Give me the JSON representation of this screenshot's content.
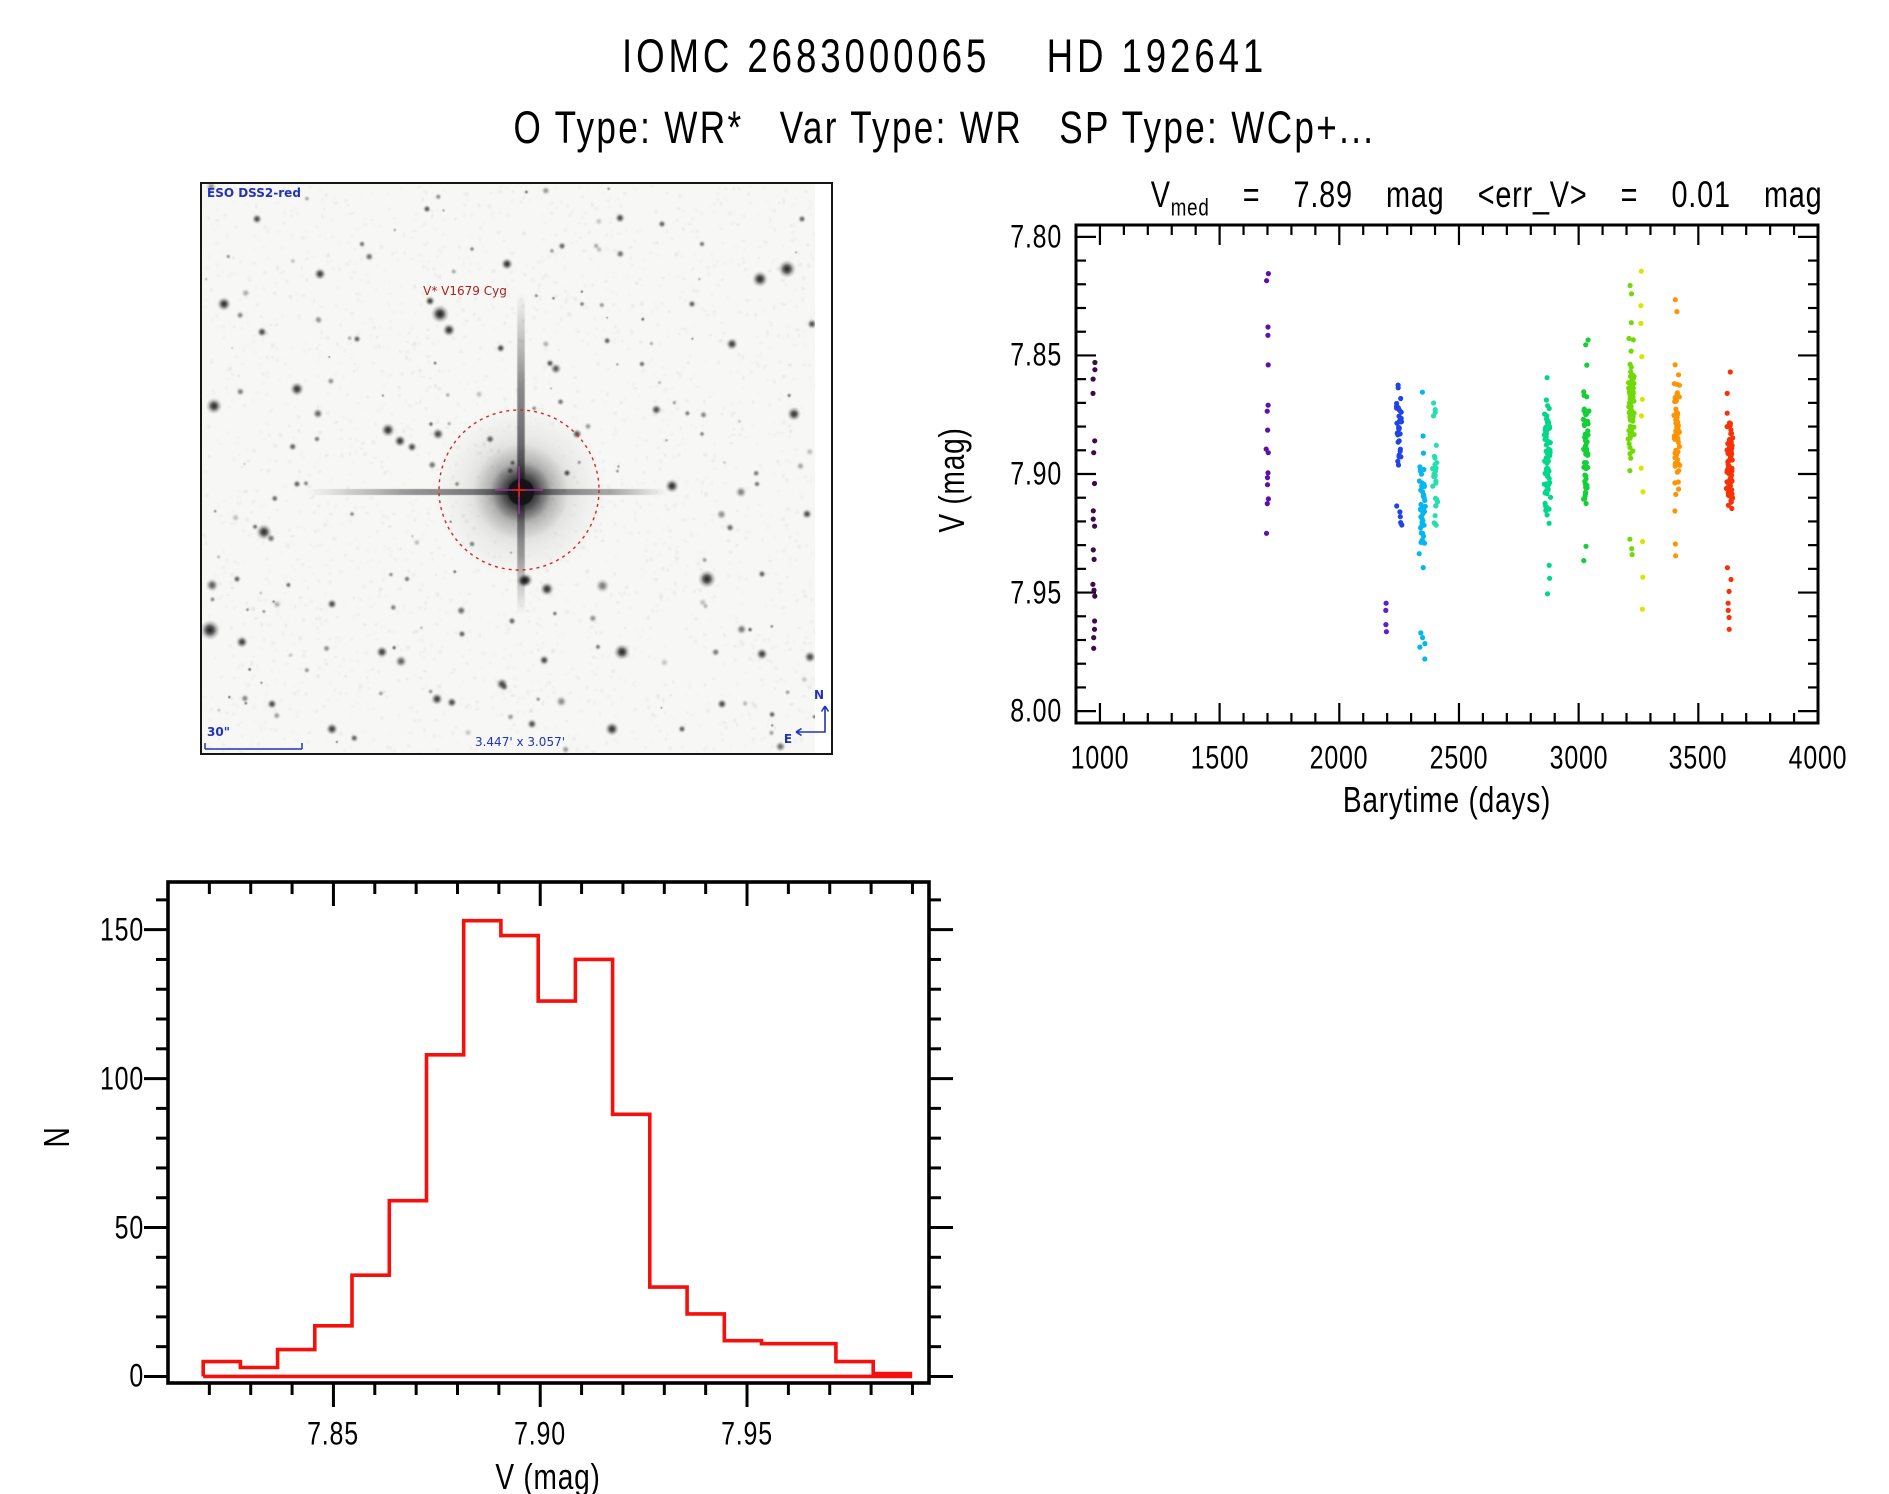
{
  "page": {
    "title": "IOMC 2683000065    HD 192641",
    "subtitle": "O Type: WR*   Var Type: WR   SP Type: WCp+...",
    "background": "#ffffff"
  },
  "finder": {
    "survey_label": "ESO DSS2-red",
    "target_label": "V* V1679 Cyg",
    "scale_label": "30\"",
    "fov_label": "3.447' x 3.057'",
    "compass_north": "N",
    "compass_east": "E",
    "annotation_color": "#2233bb",
    "target_color": "#aa2222",
    "circle_color": "#dd2222",
    "crosshair_color": "#bb33bb",
    "center_mark_color": "#dd2222"
  },
  "chart_data": [
    {
      "type": "scatter",
      "name": "light curve",
      "title": {
        "prefix": "V",
        "subscript": "med",
        "suffix": "  =  7.89  mag  <err_V>  =  0.01  mag"
      },
      "xlabel": "Barytime (days)",
      "ylabel": "V (mag)",
      "xlim": [
        900,
        4000
      ],
      "ylim": [
        7.795,
        8.005
      ],
      "y_inverted": true,
      "grid": false,
      "x_major_ticks": [
        1000,
        1500,
        2000,
        2500,
        3000,
        3500,
        4000
      ],
      "x_major_labels": [
        "1000",
        "1500",
        "2000",
        "2500",
        "3000",
        "3500",
        "4000"
      ],
      "x_minor_step": 100,
      "y_major_ticks": [
        7.8,
        7.85,
        7.9,
        7.95,
        8.0
      ],
      "y_major_labels": [
        "7.80",
        "7.85",
        "7.90",
        "7.95",
        "8.00"
      ],
      "y_minor_step": 0.01,
      "point_radius_px": 2.6,
      "clusters": [
        {
          "day": 975,
          "color": "#400a4a",
          "v": [
            7.853,
            7.856,
            7.86,
            7.866,
            7.886,
            7.891,
            7.904,
            7.9155,
            7.919,
            7.922,
            7.932,
            7.936,
            7.9465,
            7.949,
            7.9515,
            7.962,
            7.9655,
            7.969,
            7.9735
          ]
        },
        {
          "day": 1700,
          "color": "#5f10a8",
          "v": [
            7.8155,
            7.8185,
            7.838,
            7.8415,
            7.854,
            7.871,
            7.8735,
            7.8815,
            7.8895,
            7.891,
            7.8995,
            7.9015,
            7.9045,
            7.9105,
            7.9125,
            7.925
          ]
        },
        {
          "day": 2195,
          "color": "#5a21cc",
          "v": [
            7.9545,
            7.9575,
            7.9635,
            7.9665
          ]
        },
        {
          "day": 2250,
          "color": "#2145e4",
          "gen": {
            "n": 32,
            "mean": 7.884,
            "sigma": 0.01,
            "min": 7.861,
            "max": 7.908
          },
          "v": [
            7.8625,
            7.9135,
            7.916,
            7.918,
            7.9205,
            7.9215
          ]
        },
        {
          "day": 2346,
          "color": "#08b6ee",
          "gen": {
            "n": 48,
            "mean": 7.9145,
            "sigma": 0.0155,
            "min": 7.879,
            "max": 7.9555
          },
          "v": [
            7.8655,
            7.967,
            7.969,
            7.9715,
            7.973,
            7.978
          ]
        },
        {
          "day": 2400,
          "color": "#26dfae",
          "gen": {
            "n": 28,
            "mean": 7.9,
            "sigma": 0.015,
            "min": 7.868,
            "max": 7.9515
          }
        },
        {
          "day": 2870,
          "color": "#00d788",
          "gen": {
            "n": 82,
            "mean": 7.8925,
            "sigma": 0.0125,
            "min": 7.846,
            "max": 7.9315
          },
          "v": [
            7.9385,
            7.944,
            7.9505
          ]
        },
        {
          "day": 3030,
          "color": "#15cf39",
          "gen": {
            "n": 62,
            "mean": 7.888,
            "sigma": 0.012,
            "min": 7.848,
            "max": 7.9275
          },
          "v": [
            7.8435,
            7.8455,
            7.9305,
            7.9365
          ]
        },
        {
          "day": 3220,
          "color": "#72d908",
          "gen": {
            "n": 88,
            "mean": 7.871,
            "sigma": 0.012,
            "min": 7.8285,
            "max": 7.9185
          },
          "v": [
            7.8205,
            7.824,
            7.9275,
            7.9315,
            7.934
          ]
        },
        {
          "day": 3265,
          "color": "#d9e500",
          "v": [
            7.8145,
            7.829,
            7.8365,
            7.8505,
            7.8685,
            7.8755,
            7.8975,
            7.9075,
            7.9285,
            7.9435,
            7.957
          ]
        },
        {
          "day": 3410,
          "color": "#fe9404",
          "gen": {
            "n": 70,
            "mean": 7.8845,
            "sigma": 0.011,
            "min": 7.8445,
            "max": 7.9255
          },
          "v": [
            7.8265,
            7.8315,
            7.9295,
            7.9345
          ]
        },
        {
          "day": 3630,
          "color": "#f53208",
          "gen": {
            "n": 85,
            "mean": 7.8965,
            "sigma": 0.01,
            "min": 7.874,
            "max": 7.9315
          },
          "v": [
            7.857,
            7.866,
            7.9395,
            7.9445,
            7.9495,
            7.9545,
            7.9575,
            7.9605,
            7.9655
          ]
        }
      ]
    },
    {
      "type": "bar",
      "name": "V magnitude histogram",
      "xlabel": "V (mag)",
      "ylabel": "N",
      "xlim": [
        7.81,
        7.994
      ],
      "ylim": [
        -2.2,
        166
      ],
      "grid": false,
      "x_major_ticks": [
        7.85,
        7.9,
        7.95
      ],
      "x_major_labels": [
        "7.85",
        "7.90",
        "7.95"
      ],
      "x_minor_step": 0.01,
      "y_major_ticks": [
        0,
        50,
        100,
        150
      ],
      "y_major_labels": [
        "0",
        "50",
        "100",
        "150"
      ],
      "y_minor_step": 10,
      "bin_start": 7.8185,
      "bin_width": 0.009,
      "counts": [
        5,
        3,
        9,
        17,
        34,
        59,
        108,
        153,
        148,
        126,
        140,
        88,
        30,
        21,
        12,
        11,
        11,
        5,
        1
      ],
      "color": "#f6100c"
    }
  ]
}
